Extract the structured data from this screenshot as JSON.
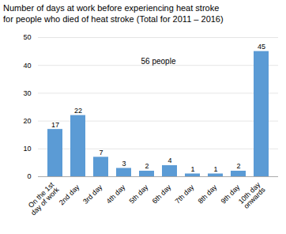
{
  "chart_data": {
    "type": "bar",
    "title": "Number of days at work before experiencing heat stroke",
    "subtitle": "for people who died of heat stroke (Total for 2011 – 2016)",
    "categories": [
      "On the 1st\nday of work",
      "2nd day",
      "3rd day",
      "4th day",
      "5th day",
      "6th day",
      "7th day",
      "8th day",
      "9th day",
      "10th day\nonwards"
    ],
    "values": [
      17,
      22,
      7,
      3,
      2,
      4,
      1,
      1,
      2,
      45
    ],
    "color": "#5b9bd5",
    "ylim": [
      0,
      50
    ],
    "yticks": [
      0,
      10,
      20,
      30,
      40,
      50
    ],
    "grid": true,
    "data_labels": true,
    "annotations": [
      "56 people"
    ]
  }
}
